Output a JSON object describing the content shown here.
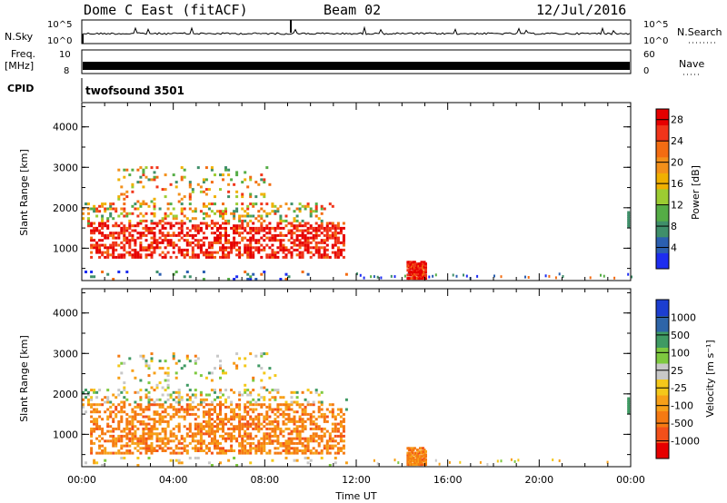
{
  "header": {
    "title": "Dome C East (fitACF)",
    "beam": "Beam 02",
    "date": "12/Jul/2016"
  },
  "strips": {
    "nsky": {
      "label": "N.Sky",
      "ticks": [
        "10^5",
        "10^0"
      ],
      "right_label": "N.Search",
      "right_ticks": [
        "10^5",
        "10^0"
      ]
    },
    "freq": {
      "label_line1": "Freq.",
      "label_line2": "[MHz]",
      "ticks": [
        "10",
        "8"
      ],
      "right_label": "Nave",
      "right_ticks": [
        "60",
        "0"
      ]
    },
    "cpid": {
      "label": "CPID",
      "program": "twofsound 3501"
    }
  },
  "colors": {
    "power": [
      "#1d2df0",
      "#2b5fb0",
      "#3f8f6a",
      "#55ad46",
      "#9ccc32",
      "#f0b000",
      "#f3901a",
      "#f36c12",
      "#f1351a",
      "#e60000"
    ],
    "velocity": [
      "#e60000",
      "#f3501a",
      "#f57a12",
      "#f7a018",
      "#f4c81a",
      "#c8c8c8",
      "#7ec93f",
      "#3f9a63",
      "#2e65a8",
      "#1c3ed0"
    ]
  },
  "chart_data": [
    {
      "type": "heatmap",
      "panel": "power",
      "ylabel": "Slant Range [km]",
      "yticks": [
        "1000",
        "2000",
        "3000",
        "4000"
      ],
      "ylim": [
        200,
        4600
      ],
      "xlim": [
        0,
        24
      ],
      "colorbar": {
        "label": "Power [dB]",
        "ticks": [
          "4",
          "8",
          "12",
          "16",
          "20",
          "24",
          "28"
        ],
        "range": [
          0,
          30
        ]
      },
      "echo_regions": [
        {
          "t": [
            0,
            11.6
          ],
          "r": [
            200,
            3100
          ],
          "core_r": [
            700,
            1600
          ],
          "core_db": 28
        },
        {
          "t": [
            14.2,
            15.0
          ],
          "r": [
            200,
            650
          ],
          "core_db": 28
        },
        {
          "t": [
            23.8,
            24
          ],
          "r": [
            1500,
            1900
          ],
          "core_db": 12
        }
      ]
    },
    {
      "type": "heatmap",
      "panel": "velocity",
      "ylabel": "Slant Range [km]",
      "yticks": [
        "1000",
        "2000",
        "3000",
        "4000"
      ],
      "ylim": [
        200,
        4600
      ],
      "xlim": [
        0,
        24
      ],
      "xticks": [
        "00:00",
        "04:00",
        "08:00",
        "12:00",
        "16:00",
        "20:00",
        "00:00"
      ],
      "xlabel": "Time UT",
      "colorbar": {
        "label": "Velocity [m s⁻¹]",
        "ticks": [
          "1000",
          "500",
          "100",
          "25",
          "-25",
          "-100",
          "-500",
          "-1000"
        ]
      },
      "echo_regions": [
        {
          "t": [
            0,
            11.6
          ],
          "r": [
            200,
            3100
          ],
          "core_r": [
            500,
            1700
          ],
          "core_v": -100
        },
        {
          "t": [
            14.2,
            15.0
          ],
          "r": [
            200,
            650
          ],
          "core_v": -100
        },
        {
          "t": [
            23.8,
            24
          ],
          "r": [
            1500,
            1900
          ],
          "core_v": 100
        }
      ]
    }
  ]
}
